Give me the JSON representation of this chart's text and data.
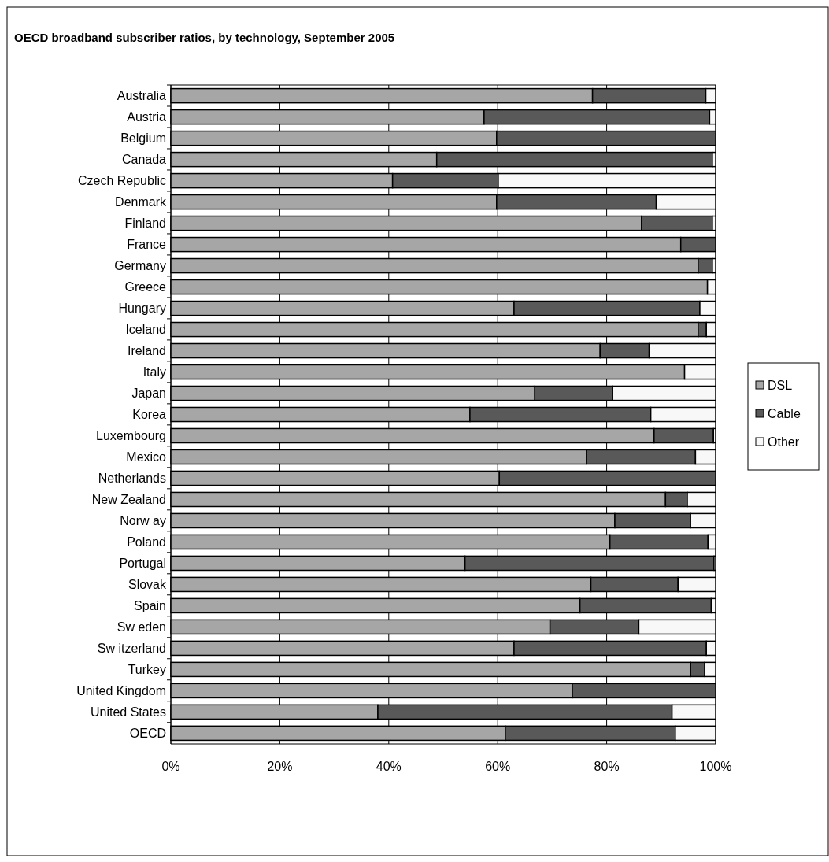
{
  "chart_data": {
    "type": "bar",
    "orientation": "horizontal",
    "stacked": true,
    "title": "OECD broadband subscriber ratios, by technology, September 2005",
    "categories": [
      "Australia",
      "Austria",
      "Belgium",
      "Canada",
      "Czech Republic",
      "Denmark",
      "Finland",
      "France",
      "Germany",
      "Greece",
      "Hungary",
      "Iceland",
      "Ireland",
      "Italy",
      "Japan",
      "Korea",
      "Luxembourg",
      "Mexico",
      "Netherlands",
      "New Zealand",
      "Norw ay",
      "Poland",
      "Portugal",
      "Slovak",
      "Spain",
      "Sw eden",
      "Sw itzerland",
      "Turkey",
      "United Kingdom",
      "United States",
      "OECD"
    ],
    "series": [
      {
        "name": "DSL",
        "color": "#a6a6a6",
        "values": [
          77.4,
          57.5,
          59.8,
          48.8,
          40.7,
          59.8,
          86.4,
          93.6,
          96.8,
          98.5,
          63.0,
          96.8,
          78.8,
          94.3,
          66.8,
          54.9,
          88.7,
          76.3,
          60.3,
          90.8,
          81.5,
          80.6,
          54.0,
          77.1,
          75.1,
          69.6,
          63.0,
          95.4,
          73.7,
          38.0,
          61.4
        ]
      },
      {
        "name": "Cable",
        "color": "#595959",
        "values": [
          20.8,
          41.4,
          40.2,
          50.6,
          19.4,
          29.3,
          13.0,
          6.4,
          2.6,
          0,
          34.1,
          1.5,
          9.0,
          0,
          14.3,
          33.2,
          10.9,
          20.0,
          39.7,
          4.0,
          13.9,
          18.0,
          45.7,
          16.0,
          24.1,
          16.3,
          35.3,
          2.6,
          26.3,
          54.0,
          31.2
        ]
      },
      {
        "name": "Other",
        "color": "#f8f8f8",
        "values": [
          1.8,
          1.1,
          0,
          0.6,
          39.9,
          10.9,
          0.6,
          0,
          0.6,
          1.5,
          2.9,
          1.7,
          12.2,
          5.7,
          18.9,
          11.9,
          0.4,
          3.7,
          0,
          5.2,
          4.6,
          1.4,
          0.3,
          6.9,
          0.8,
          14.1,
          1.7,
          2.0,
          0,
          8.0,
          7.4
        ]
      }
    ],
    "xlim": [
      0,
      100
    ],
    "xticks": [
      {
        "value": 0,
        "label": "0%"
      },
      {
        "value": 20,
        "label": "20%"
      },
      {
        "value": 40,
        "label": "40%"
      },
      {
        "value": 60,
        "label": "60%"
      },
      {
        "value": 80,
        "label": "80%"
      },
      {
        "value": 100,
        "label": "100%"
      }
    ],
    "grid": "x",
    "legend": "right"
  }
}
